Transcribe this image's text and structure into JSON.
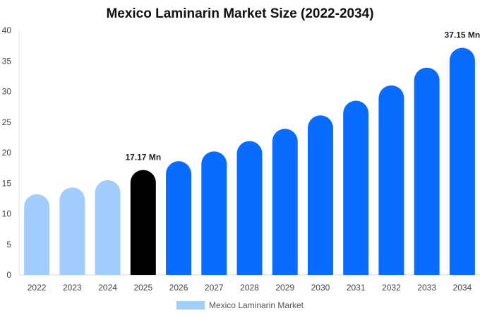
{
  "chart_data": {
    "type": "bar",
    "title": "Mexico Laminarin Market Size (2022-2034)",
    "xlabel": "",
    "ylabel": "",
    "ylim": [
      0,
      40
    ],
    "yticks": [
      0,
      5,
      10,
      15,
      20,
      25,
      30,
      35,
      40
    ],
    "categories": [
      "2022",
      "2023",
      "2024",
      "2025",
      "2026",
      "2027",
      "2028",
      "2029",
      "2030",
      "2031",
      "2032",
      "2033",
      "2034"
    ],
    "series": [
      {
        "name": "Mexico Laminarin Market",
        "values": [
          13.2,
          14.3,
          15.5,
          17.17,
          18.6,
          20.2,
          21.9,
          23.9,
          26.1,
          28.5,
          31.0,
          33.9,
          37.15
        ],
        "point_colors": [
          "#a3ccff",
          "#a3ccff",
          "#a3ccff",
          "#000000",
          "#0a6cff",
          "#0a6cff",
          "#0a6cff",
          "#0a6cff",
          "#0a6cff",
          "#0a6cff",
          "#0a6cff",
          "#0a6cff",
          "#0a6cff"
        ]
      }
    ],
    "data_labels": [
      {
        "index": 3,
        "text": "17.17 Mn"
      },
      {
        "index": 12,
        "text": "37.15 Mn"
      }
    ],
    "legend": {
      "label": "Mexico Laminarin Market",
      "color": "#a3ccff",
      "position": "bottom"
    },
    "grid": false
  }
}
